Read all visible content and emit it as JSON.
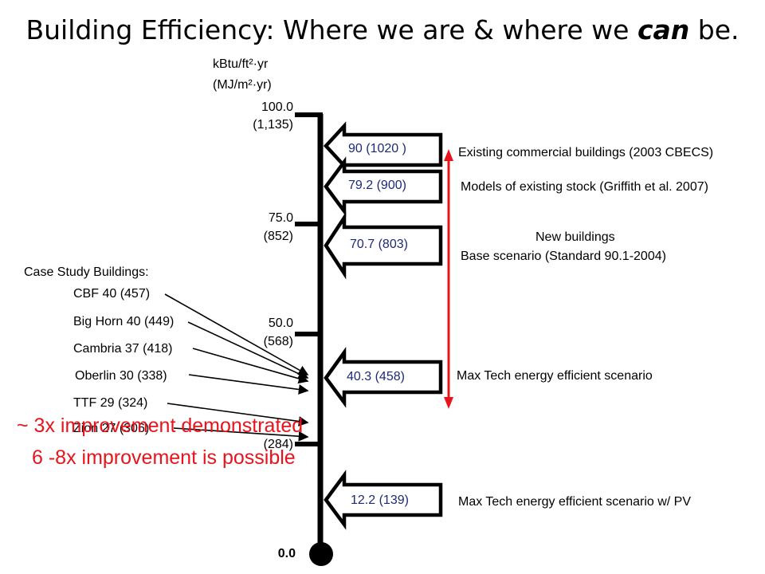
{
  "title": {
    "prefix": "Building Efficiency: Where we are & where we ",
    "emphasis": "can",
    "suffix": " be."
  },
  "axis": {
    "unit_primary": "kBtu/ft²·yr",
    "unit_secondary": "(MJ/m²·yr)",
    "ticks": [
      {
        "value": "100.0",
        "si": "(1,135)"
      },
      {
        "value": "75.0",
        "si": "(852)"
      },
      {
        "value": "50.0",
        "si": "(568)"
      },
      {
        "value": "",
        "si": "(284)"
      },
      {
        "value": "0.0",
        "si": ""
      }
    ]
  },
  "scenarios": [
    {
      "value": "90 (1020 )",
      "label": "Existing commercial buildings (2003 CBECS)"
    },
    {
      "value": "79.2 (900)",
      "label": "Models of existing stock (Griffith et al. 2007)"
    },
    {
      "value": "70.7 (803)",
      "label_line1": "New buildings",
      "label_line2": "Base scenario (Standard 90.1-2004)"
    },
    {
      "value": "40.3 (458)",
      "label": "Max Tech energy efficient scenario"
    },
    {
      "value": "12.2 (139)",
      "label": "Max Tech energy efficient scenario w/ PV"
    }
  ],
  "case_studies": {
    "heading": "Case Study Buildings:",
    "items": [
      "CBF 40 (457)",
      "Big Horn 40 (449)",
      "Cambria 37 (418)",
      "Oberlin 30 (338)",
      "TTF 29 (324)",
      "Zion 27 (306)"
    ]
  },
  "callouts": {
    "line1": "~ 3x improvement demonstrated",
    "line2": "6 -8x improvement is possible"
  },
  "colors": {
    "range_arrow": "#e8141c",
    "value_text": "#1c2a78",
    "callout_text": "#e8141c"
  }
}
